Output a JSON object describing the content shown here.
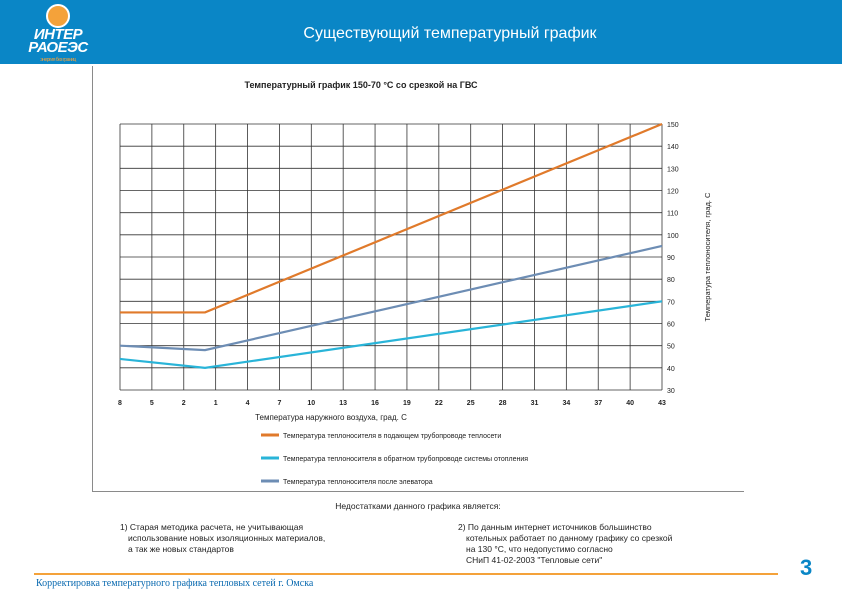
{
  "logo": {
    "line1": "ИНТЕР",
    "line2": "РАОЕЭС",
    "line3": "энергия без границ"
  },
  "page_title": "Существующий температурный график",
  "colors": {
    "header": "#0a86c6",
    "supply": "#e07a2b",
    "return": "#29b4d8",
    "elevator": "#6d8db4",
    "accent": "#f4a23a"
  },
  "chart_data": {
    "type": "line",
    "title": "Температурный график 150-70 °С со срезкой на ГВС",
    "xlabel": "Температура наружного воздуха, град. С",
    "ylabel": "Температура теплоносителя, град. С",
    "categories": [
      "8",
      "5",
      "2",
      "-1",
      "-4",
      "-7",
      "-10",
      "-13",
      "-16",
      "-19",
      "-22",
      "-25",
      "-28",
      "-31",
      "-34",
      "-37",
      "-40",
      "-43"
    ],
    "x_tick_labels": [
      "8",
      "5",
      "2",
      "1",
      "4",
      "7",
      "10",
      "13",
      "16",
      "19",
      "22",
      "25",
      "28",
      "31",
      "34",
      "37",
      "40",
      "43"
    ],
    "y_ticks": [
      30,
      40,
      50,
      60,
      70,
      80,
      90,
      100,
      110,
      120,
      130,
      140,
      150
    ],
    "ylim": [
      30,
      150
    ],
    "grid": true,
    "legend_position": "bottom",
    "series": [
      {
        "name": "Температура теплоносителя в подающем трубопроводе теплосети",
        "color": "#e07a2b",
        "x": [
          8,
          0,
          -43
        ],
        "y": [
          65,
          65,
          150
        ]
      },
      {
        "name": "Температура теплоносителя в обратном трубопроводе системы отопления",
        "color": "#29b4d8",
        "x": [
          8,
          0,
          -43
        ],
        "y": [
          44,
          40,
          70
        ]
      },
      {
        "name": "Температура теплоносителя после элеватора",
        "color": "#6d8db4",
        "x": [
          8,
          0,
          -43
        ],
        "y": [
          50,
          48,
          95
        ]
      }
    ]
  },
  "notes": {
    "title": "Недостатками данного графика является:",
    "note1": [
      "1) Старая методика расчета, не учитывающая",
      "использование новых изоляционных материалов,",
      "а так же новых стандартов"
    ],
    "note2": [
      "2) По данным интернет источников большинство",
      "котельных работает по данному графику со срезкой",
      "на 130 °С, что недопустимо согласно",
      "СНиП 41-02-2003 \"Тепловые сети\""
    ]
  },
  "footer": {
    "text": "Корректировка температурного графика тепловых сетей г. Омска",
    "page_number": "3"
  }
}
